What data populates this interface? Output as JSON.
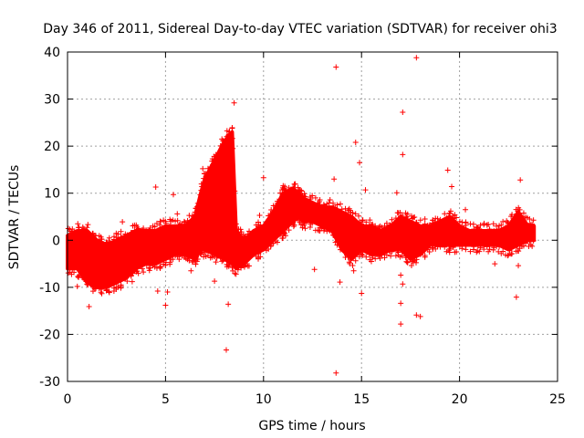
{
  "chart_data": {
    "type": "scatter",
    "title": "Day 346 of 2011, Sidereal Day-to-day VTEC variation (SDTVAR) for receiver ohi3",
    "xlabel": "GPS time / hours",
    "ylabel": "SDTVAR / TECUs",
    "xlim": [
      0,
      25
    ],
    "ylim": [
      -30,
      40
    ],
    "xticks": [
      "0",
      "5",
      "10",
      "15",
      "20",
      "25"
    ],
    "yticks": [
      "40",
      "30",
      "20",
      "10",
      "0",
      "-10",
      "-20",
      "-30"
    ],
    "xtick_values": [
      0,
      5,
      10,
      15,
      20,
      25
    ],
    "ytick_values": [
      40,
      30,
      20,
      10,
      0,
      -10,
      -20,
      -30
    ],
    "grid": true,
    "marker": "+",
    "series_color": "#ff0000",
    "series": [
      {
        "name": "SDTVAR",
        "band_x": [
          0,
          0.5,
          1.0,
          1.5,
          2.0,
          2.5,
          3.0,
          3.5,
          4.0,
          4.5,
          5.0,
          5.5,
          6.0,
          6.5,
          6.8,
          7.0,
          7.5,
          8.0,
          8.4,
          8.6,
          9.0,
          9.5,
          10.0,
          10.5,
          11.0,
          11.5,
          11.8,
          12.0,
          12.5,
          13.0,
          13.5,
          14.0,
          14.5,
          15.0,
          15.5,
          16.0,
          16.5,
          17.0,
          17.5,
          18.0,
          18.5,
          19.0,
          19.5,
          20.0,
          20.5,
          21.0,
          21.5,
          22.0,
          22.5,
          23.0,
          23.5,
          23.8
        ],
        "band_low": [
          -6,
          -6,
          -9,
          -10,
          -10,
          -9,
          -8,
          -6,
          -5,
          -5,
          -4,
          -3,
          -3,
          -4,
          -2,
          -2,
          -3,
          -4,
          -5,
          -6,
          -5,
          -3,
          -2,
          0,
          2,
          4,
          5,
          4,
          4,
          3,
          2,
          -2,
          -4,
          -2,
          -3,
          -3,
          -2,
          -2,
          -4,
          -3,
          -1,
          -1,
          -1,
          -1,
          -1,
          -1,
          -1,
          -1,
          -2,
          -1,
          0,
          0
        ],
        "band_high": [
          1,
          2,
          2,
          0,
          -1,
          0,
          1,
          2,
          2,
          2,
          3,
          3,
          3,
          5,
          10,
          13,
          17,
          21,
          23,
          2,
          0,
          2,
          3,
          6,
          10,
          11,
          10,
          9,
          8,
          7,
          7,
          6,
          5,
          3,
          3,
          2,
          3,
          5,
          4,
          3,
          3,
          4,
          5,
          3,
          2,
          2,
          2,
          2,
          3,
          6,
          3,
          3
        ],
        "outliers": [
          [
            13.7,
            36.8
          ],
          [
            17.8,
            38.8
          ],
          [
            17.1,
            27.2
          ],
          [
            8.5,
            29.2
          ],
          [
            14.7,
            20.8
          ],
          [
            17.1,
            18.2
          ],
          [
            19.4,
            14.9
          ],
          [
            13.6,
            13.0
          ],
          [
            23.1,
            12.8
          ],
          [
            10.0,
            13.3
          ],
          [
            4.5,
            11.3
          ],
          [
            14.9,
            16.5
          ],
          [
            15.2,
            10.7
          ],
          [
            5.4,
            9.7
          ],
          [
            8.1,
            8.9
          ],
          [
            8.4,
            8.5
          ],
          [
            19.6,
            11.4
          ],
          [
            22.4,
            4.1
          ],
          [
            6.9,
            15.2
          ],
          [
            20.3,
            6.5
          ],
          [
            8.2,
            -13.6
          ],
          [
            8.1,
            -23.3
          ],
          [
            13.7,
            -28.2
          ],
          [
            17.0,
            -17.8
          ],
          [
            17.8,
            -15.9
          ],
          [
            17.0,
            -13.4
          ],
          [
            15.0,
            -11.3
          ],
          [
            5.0,
            -13.8
          ],
          [
            4.6,
            -10.8
          ],
          [
            22.9,
            -12.1
          ],
          [
            14.6,
            -6.5
          ],
          [
            1.1,
            -14.1
          ],
          [
            6.3,
            -6.5
          ],
          [
            17.1,
            -9.3
          ],
          [
            17.0,
            -7.4
          ],
          [
            13.9,
            -8.9
          ],
          [
            18.0,
            -16.2
          ],
          [
            7.5,
            -8.7
          ],
          [
            21.8,
            -5.0
          ],
          [
            23.0,
            -5.4
          ],
          [
            2.8,
            3.9
          ],
          [
            5.6,
            5.6
          ],
          [
            9.8,
            5.3
          ],
          [
            14.0,
            6.6
          ],
          [
            16.8,
            10.1
          ],
          [
            0.5,
            -9.8
          ],
          [
            3.3,
            -8.8
          ],
          [
            12.6,
            -6.2
          ],
          [
            5.1,
            -11.0
          ],
          [
            8.5,
            0.8
          ]
        ]
      }
    ]
  }
}
